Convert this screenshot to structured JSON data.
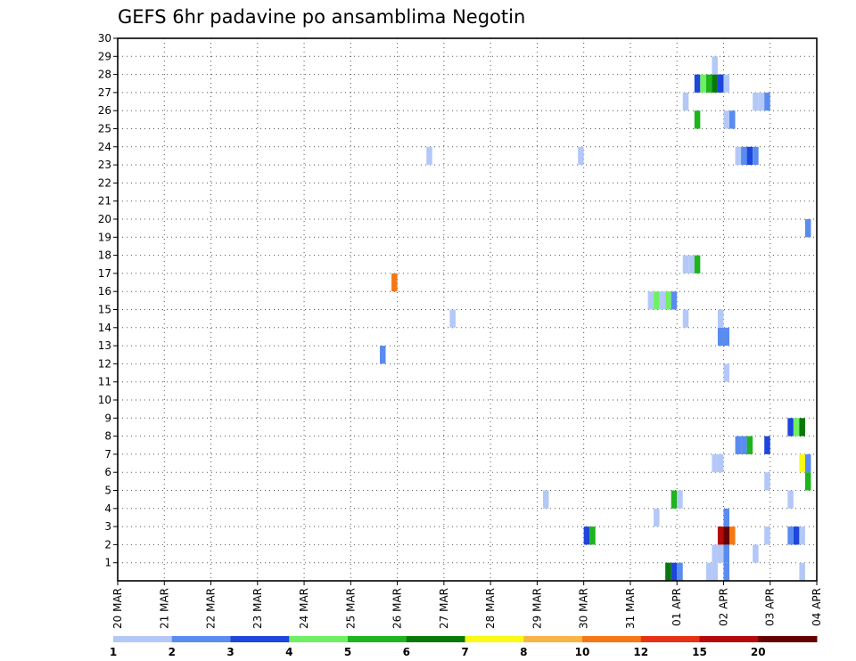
{
  "chart_data": {
    "type": "heatmap",
    "title": "GEFS 6hr padavine po ansamblima Negotin",
    "xlabel": "",
    "ylabel": "",
    "x_tick_labels": [
      "20 MAR",
      "21 MAR",
      "22 MAR",
      "23 MAR",
      "24 MAR",
      "25 MAR",
      "26 MAR",
      "27 MAR",
      "28 MAR",
      "29 MAR",
      "30 MAR",
      "31 MAR",
      "01 APR",
      "02 APR",
      "03 APR",
      "04 APR"
    ],
    "y_tick_labels": [
      "1",
      "2",
      "3",
      "4",
      "5",
      "6",
      "7",
      "8",
      "9",
      "10",
      "11",
      "12",
      "13",
      "14",
      "15",
      "16",
      "17",
      "18",
      "19",
      "20",
      "21",
      "22",
      "23",
      "24",
      "25",
      "26",
      "27",
      "28",
      "29",
      "30"
    ],
    "x_range_days": [
      0,
      15
    ],
    "y_range_members": [
      0,
      30
    ],
    "grid": true,
    "legend_position": "bottom",
    "colorbar": {
      "labels": [
        "1",
        "2",
        "3",
        "4",
        "5",
        "6",
        "7",
        "8",
        "10",
        "12",
        "15",
        "20"
      ],
      "colors": [
        "#b4c8f8",
        "#5a8cf0",
        "#1e46dc",
        "#6ef064",
        "#1eb41e",
        "#087808",
        "#fafa14",
        "#fab446",
        "#f57814",
        "#e63214",
        "#b40a0a",
        "#640000"
      ]
    },
    "cells": [
      {
        "t": 12.625,
        "m": 0,
        "c": 1
      },
      {
        "t": 12.75,
        "m": 0,
        "c": 1
      },
      {
        "t": 11.75,
        "m": 0,
        "c": 6
      },
      {
        "t": 11.875,
        "m": 0,
        "c": 3
      },
      {
        "t": 12.0,
        "m": 0,
        "c": 2
      },
      {
        "t": 13.0,
        "m": 0,
        "c": 2
      },
      {
        "t": 14.625,
        "m": 0,
        "c": 1
      },
      {
        "t": 12.75,
        "m": 1,
        "c": 1
      },
      {
        "t": 12.875,
        "m": 1,
        "c": 1
      },
      {
        "t": 13.0,
        "m": 1,
        "c": 2
      },
      {
        "t": 13.625,
        "m": 1,
        "c": 1
      },
      {
        "t": 10.0,
        "m": 2,
        "c": 3
      },
      {
        "t": 10.125,
        "m": 2,
        "c": 5
      },
      {
        "t": 12.875,
        "m": 2,
        "c": 11
      },
      {
        "t": 13.0,
        "m": 2,
        "c": 12
      },
      {
        "t": 13.125,
        "m": 2,
        "c": 9
      },
      {
        "t": 13.875,
        "m": 2,
        "c": 1
      },
      {
        "t": 14.375,
        "m": 2,
        "c": 2
      },
      {
        "t": 14.5,
        "m": 2,
        "c": 3
      },
      {
        "t": 14.625,
        "m": 2,
        "c": 1
      },
      {
        "t": 13.0,
        "m": 3,
        "c": 2
      },
      {
        "t": 11.5,
        "m": 3,
        "c": 1
      },
      {
        "t": 9.125,
        "m": 4,
        "c": 1
      },
      {
        "t": 11.875,
        "m": 4,
        "c": 5
      },
      {
        "t": 12.0,
        "m": 4,
        "c": 1
      },
      {
        "t": 14.375,
        "m": 4,
        "c": 1
      },
      {
        "t": 13.875,
        "m": 5,
        "c": 1
      },
      {
        "t": 14.75,
        "m": 5,
        "c": 5
      },
      {
        "t": 12.75,
        "m": 6,
        "c": 1
      },
      {
        "t": 12.875,
        "m": 6,
        "c": 1
      },
      {
        "t": 14.625,
        "m": 6,
        "c": 7
      },
      {
        "t": 14.75,
        "m": 6,
        "c": 2
      },
      {
        "t": 13.25,
        "m": 7,
        "c": 2
      },
      {
        "t": 13.375,
        "m": 7,
        "c": 2
      },
      {
        "t": 13.5,
        "m": 7,
        "c": 5
      },
      {
        "t": 13.875,
        "m": 7,
        "c": 3
      },
      {
        "t": 14.375,
        "m": 8,
        "c": 3
      },
      {
        "t": 14.5,
        "m": 8,
        "c": 4
      },
      {
        "t": 14.625,
        "m": 8,
        "c": 6
      },
      {
        "t": 13.0,
        "m": 11,
        "c": 1
      },
      {
        "t": 5.625,
        "m": 12,
        "c": 2
      },
      {
        "t": 12.875,
        "m": 13,
        "c": 2
      },
      {
        "t": 13.0,
        "m": 13,
        "c": 2
      },
      {
        "t": 7.125,
        "m": 14,
        "c": 1
      },
      {
        "t": 12.125,
        "m": 14,
        "c": 1
      },
      {
        "t": 12.875,
        "m": 14,
        "c": 1
      },
      {
        "t": 11.375,
        "m": 15,
        "c": 1
      },
      {
        "t": 11.5,
        "m": 15,
        "c": 4
      },
      {
        "t": 11.625,
        "m": 15,
        "c": 1
      },
      {
        "t": 11.75,
        "m": 15,
        "c": 4
      },
      {
        "t": 11.875,
        "m": 15,
        "c": 2
      },
      {
        "t": 5.875,
        "m": 16,
        "c": 9
      },
      {
        "t": 12.125,
        "m": 17,
        "c": 1
      },
      {
        "t": 12.25,
        "m": 17,
        "c": 1
      },
      {
        "t": 12.375,
        "m": 17,
        "c": 5
      },
      {
        "t": 14.75,
        "m": 19,
        "c": 2
      },
      {
        "t": 6.625,
        "m": 23,
        "c": 1
      },
      {
        "t": 9.875,
        "m": 23,
        "c": 1
      },
      {
        "t": 13.25,
        "m": 23,
        "c": 1
      },
      {
        "t": 13.375,
        "m": 23,
        "c": 2
      },
      {
        "t": 13.5,
        "m": 23,
        "c": 3
      },
      {
        "t": 13.625,
        "m": 23,
        "c": 2
      },
      {
        "t": 12.375,
        "m": 25,
        "c": 5
      },
      {
        "t": 13.0,
        "m": 25,
        "c": 1
      },
      {
        "t": 13.125,
        "m": 25,
        "c": 2
      },
      {
        "t": 12.125,
        "m": 26,
        "c": 1
      },
      {
        "t": 13.625,
        "m": 26,
        "c": 1
      },
      {
        "t": 13.75,
        "m": 26,
        "c": 1
      },
      {
        "t": 13.875,
        "m": 26,
        "c": 2
      },
      {
        "t": 12.375,
        "m": 27,
        "c": 3
      },
      {
        "t": 12.5,
        "m": 27,
        "c": 4
      },
      {
        "t": 12.625,
        "m": 27,
        "c": 5
      },
      {
        "t": 12.75,
        "m": 27,
        "c": 6
      },
      {
        "t": 12.875,
        "m": 27,
        "c": 3
      },
      {
        "t": 13.0,
        "m": 27,
        "c": 1
      },
      {
        "t": 12.75,
        "m": 28,
        "c": 1
      }
    ]
  }
}
